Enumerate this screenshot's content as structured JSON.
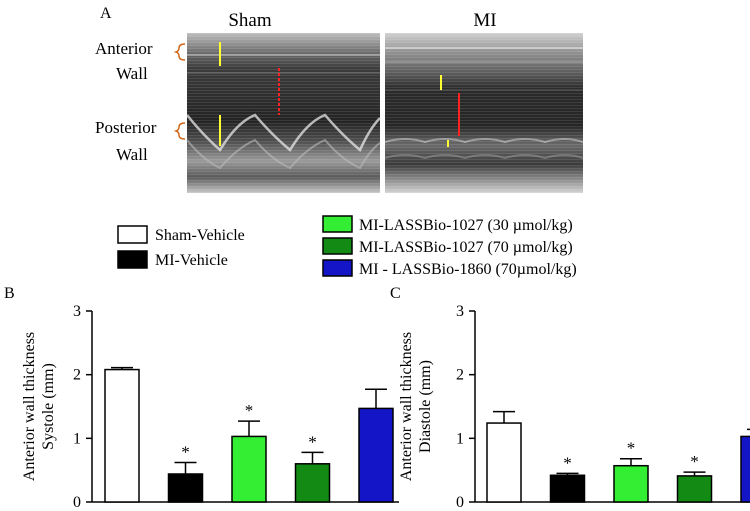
{
  "panel_a": {
    "letter": "A",
    "titles": [
      "Sham",
      "MI"
    ],
    "labels": {
      "anterior": "Anterior",
      "posterior": "Posterior",
      "wall": "Wall"
    }
  },
  "panel_b_letter": "B",
  "panel_c_letter": "C",
  "legend": [
    {
      "label": "Sham-Vehicle",
      "color": "#ffffff"
    },
    {
      "label": "MI-Vehicle",
      "color": "#000000"
    },
    {
      "label": "MI-LASSBio-1027 (30 µmol/kg)",
      "color": "#33ee33"
    },
    {
      "label": "MI-LASSBio-1027 (70 µmol/kg)",
      "color": "#138a13"
    },
    {
      "label": "MI - LASSBio-1860 (70µmol/kg)",
      "color": "#1515c8"
    }
  ],
  "chart_data": [
    {
      "type": "bar",
      "panel": "B",
      "ylabel_lines": [
        "Anterior wall thickness",
        "Systole (mm)"
      ],
      "ylim": [
        0,
        3
      ],
      "yticks": [
        "0",
        "1",
        "2",
        "3"
      ],
      "series": [
        {
          "values": [
            2.08,
            0.44,
            1.03,
            0.6,
            1.47
          ],
          "errors": [
            0.03,
            0.18,
            0.24,
            0.18,
            0.3
          ],
          "annotations": [
            "",
            "*",
            "*",
            "*",
            ""
          ]
        }
      ],
      "colors": [
        "#ffffff",
        "#000000",
        "#33ee33",
        "#138a13",
        "#1515c8"
      ]
    },
    {
      "type": "bar",
      "panel": "C",
      "ylabel_lines": [
        "Anterior wall thickness",
        "Diastole (mm)"
      ],
      "ylim": [
        0,
        3
      ],
      "yticks": [
        "0",
        "1",
        "2",
        "3"
      ],
      "series": [
        {
          "values": [
            1.24,
            0.42,
            0.57,
            0.41,
            1.03
          ],
          "errors": [
            0.18,
            0.03,
            0.11,
            0.06,
            0.11
          ],
          "annotations": [
            "",
            "*",
            "*",
            "*",
            "#"
          ]
        }
      ],
      "colors": [
        "#ffffff",
        "#000000",
        "#33ee33",
        "#138a13",
        "#1515c8"
      ]
    }
  ]
}
